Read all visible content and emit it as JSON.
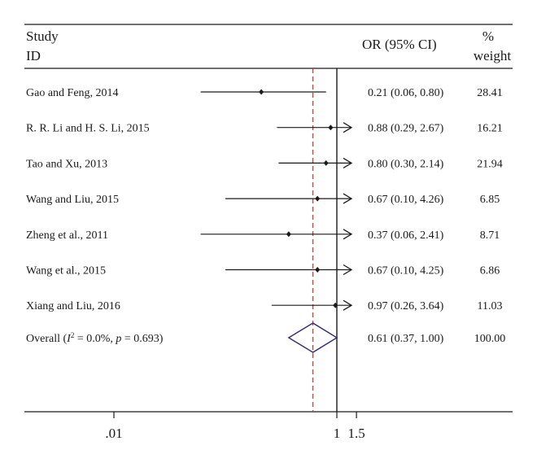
{
  "header": {
    "study_line1": "Study",
    "study_line2": "ID",
    "or_label": "OR (95% CI)",
    "weight_line1": "%",
    "weight_line2": "weight"
  },
  "chart_data": {
    "type": "forest",
    "x_scale": "log",
    "x_ticks": [
      {
        "value": 0.01,
        "label": ".01"
      },
      {
        "value": 1,
        "label": "1"
      },
      {
        "value": 1.5,
        "label": "1.5"
      }
    ],
    "null_line": 1,
    "overall_line": 0.61,
    "studies": [
      {
        "id": "Gao and Feng, 2014",
        "or": 0.21,
        "lo": 0.06,
        "hi": 0.8,
        "or_ci": "0.21 (0.06, 0.80)",
        "weight": "28.41",
        "arrow": false
      },
      {
        "id": "R. R. Li and H. S. Li, 2015",
        "or": 0.88,
        "lo": 0.29,
        "hi": 2.67,
        "or_ci": "0.88 (0.29, 2.67)",
        "weight": "16.21",
        "arrow": true
      },
      {
        "id": "Tao and Xu, 2013",
        "or": 0.8,
        "lo": 0.3,
        "hi": 2.14,
        "or_ci": "0.80 (0.30, 2.14)",
        "weight": "21.94",
        "arrow": true
      },
      {
        "id": "Wang and Liu, 2015",
        "or": 0.67,
        "lo": 0.1,
        "hi": 4.26,
        "or_ci": "0.67 (0.10, 4.26)",
        "weight": "6.85",
        "arrow": true
      },
      {
        "id": "Zheng et al., 2011",
        "or": 0.37,
        "lo": 0.06,
        "hi": 2.41,
        "or_ci": "0.37 (0.06, 2.41)",
        "weight": "8.71",
        "arrow": true
      },
      {
        "id": "Wang et al., 2015",
        "or": 0.67,
        "lo": 0.1,
        "hi": 4.25,
        "or_ci": "0.67 (0.10, 4.25)",
        "weight": "6.86",
        "arrow": true
      },
      {
        "id": "Xiang and Liu, 2016",
        "or": 0.97,
        "lo": 0.26,
        "hi": 3.64,
        "or_ci": "0.97 (0.26, 3.64)",
        "weight": "11.03",
        "arrow": true
      }
    ],
    "overall": {
      "label_prefix": "Overall (",
      "label_i": "I",
      "label_sup": "2",
      "label_mid": " = 0.0%, ",
      "label_p": "p",
      "label_end": " = 0.693)",
      "or": 0.61,
      "lo": 0.37,
      "hi": 1.0,
      "or_ci": "0.61 (0.37, 1.00)",
      "weight": "100.00"
    },
    "colors": {
      "text": "#1a1a1a",
      "axis": "#1a1a1a",
      "overall_dash": "#c0392b",
      "diamond": "#2d2a7e"
    }
  }
}
